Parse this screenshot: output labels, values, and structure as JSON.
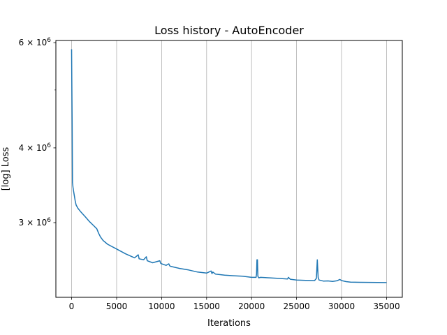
{
  "chart_data": {
    "type": "line",
    "title": "Loss history - AutoEncoder",
    "xlabel": "Iterations",
    "ylabel": "[log] Loss",
    "yscale": "log",
    "grid": "x-major",
    "xlim": [
      -1750,
      36750
    ],
    "ylim": [
      2250000,
      6050000
    ],
    "x_ticks": [
      0,
      5000,
      10000,
      15000,
      20000,
      25000,
      30000,
      35000
    ],
    "x_tick_labels": [
      "0",
      "5000",
      "10000",
      "15000",
      "20000",
      "25000",
      "30000",
      "35000"
    ],
    "y_ticks": [
      6000000,
      4000000,
      3000000
    ],
    "y_tick_mantissa": [
      "6",
      "4",
      "3"
    ],
    "y_tick_exponent": "6",
    "y_tick_base_text": " × 10",
    "y_minor_ticks": [
      5000000
    ],
    "series": [
      {
        "name": "loss",
        "color": "#1f77b4",
        "x": [
          0,
          20,
          60,
          100,
          150,
          200,
          300,
          400,
          500,
          700,
          1000,
          1500,
          2000,
          2500,
          2800,
          3000,
          3200,
          3500,
          4000,
          5000,
          6000,
          7000,
          7400,
          7500,
          8000,
          8300,
          8400,
          9000,
          9800,
          9900,
          10000,
          10500,
          10800,
          10900,
          11000,
          12000,
          13000,
          14000,
          15000,
          15500,
          15600,
          15700,
          16000,
          17000,
          18000,
          19000,
          20000,
          20500,
          20550,
          20600,
          20650,
          20700,
          20800,
          21000,
          22000,
          23000,
          24000,
          24100,
          24300,
          25000,
          26000,
          27000,
          27200,
          27300,
          27400,
          27500,
          28000,
          28500,
          29000,
          29500,
          29800,
          30000,
          30500,
          31000,
          32000,
          33000,
          34000,
          35000
        ],
        "values": [
          5850000,
          5200000,
          4400000,
          3500000,
          3440000,
          3400000,
          3330000,
          3260000,
          3210000,
          3170000,
          3130000,
          3070000,
          3010000,
          2960000,
          2930000,
          2880000,
          2840000,
          2800000,
          2760000,
          2710000,
          2660000,
          2620000,
          2650000,
          2610000,
          2600000,
          2630000,
          2590000,
          2570000,
          2590000,
          2565000,
          2560000,
          2545000,
          2560000,
          2540000,
          2535000,
          2515000,
          2500000,
          2480000,
          2470000,
          2490000,
          2465000,
          2480000,
          2460000,
          2450000,
          2445000,
          2440000,
          2430000,
          2430000,
          2460000,
          2600000,
          2600000,
          2440000,
          2425000,
          2430000,
          2425000,
          2420000,
          2415000,
          2430000,
          2412000,
          2405000,
          2402000,
          2400000,
          2420000,
          2600000,
          2430000,
          2405000,
          2395000,
          2397000,
          2392000,
          2398000,
          2410000,
          2400000,
          2390000,
          2385000,
          2384000,
          2383000,
          2382000,
          2381000
        ]
      }
    ]
  }
}
